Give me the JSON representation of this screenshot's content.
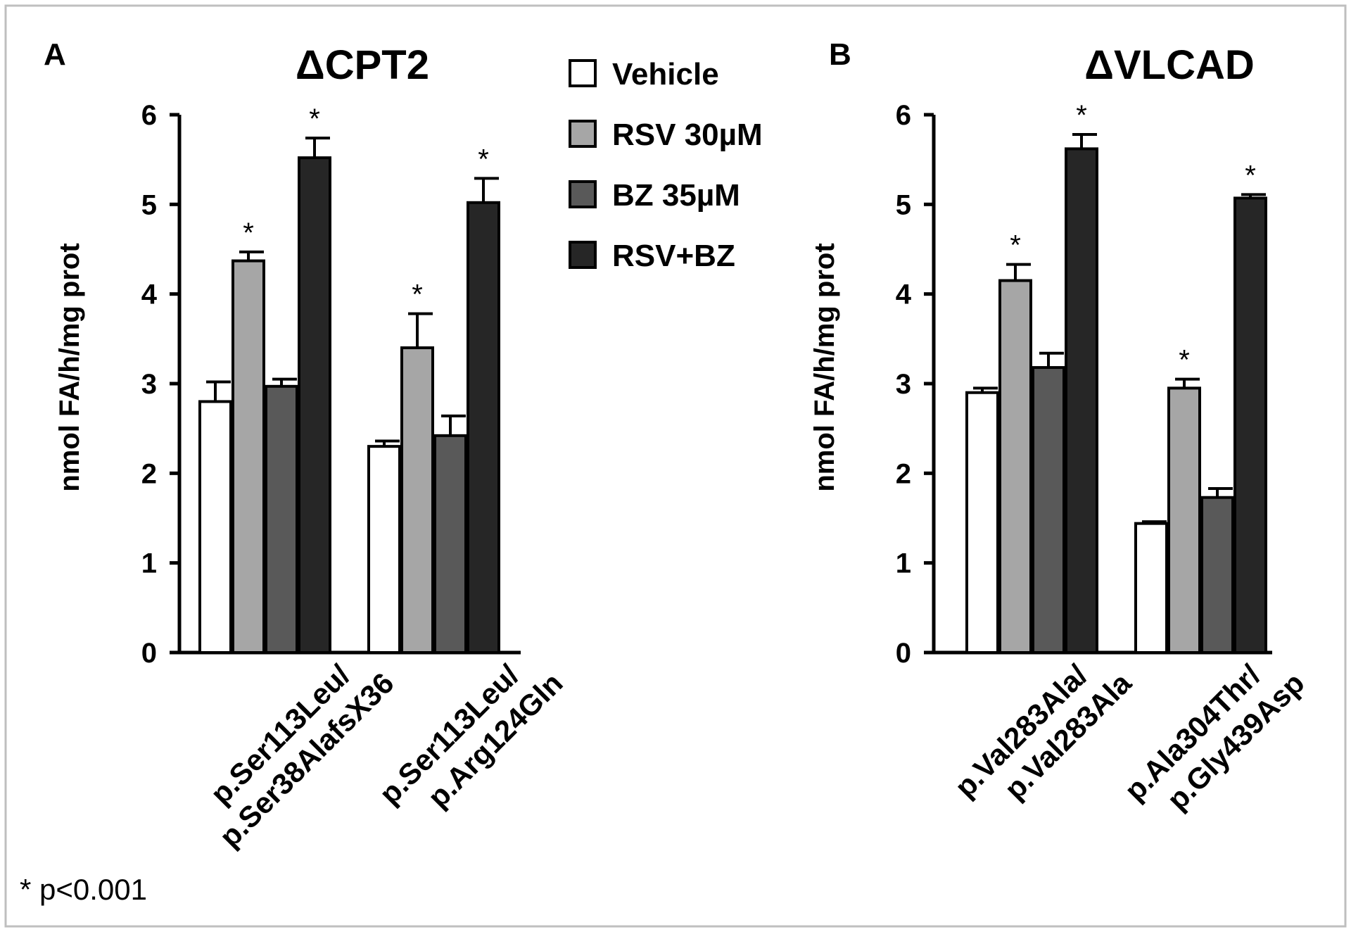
{
  "legend": [
    {
      "label": "Vehicle",
      "color": "#ffffff"
    },
    {
      "label": "RSV 30µM",
      "color": "#a6a6a6"
    },
    {
      "label": "BZ 35µM",
      "color": "#595959"
    },
    {
      "label": "RSV+BZ",
      "color": "#262626"
    }
  ],
  "footnote": "* p<0.001",
  "chart_data": [
    {
      "panel": "A",
      "type": "bar",
      "title": "ΔCPT2",
      "ylabel": "nmol FA/h/mg prot",
      "ylim": [
        0,
        6
      ],
      "yticks": [
        "0",
        "1",
        "2",
        "3",
        "4",
        "5",
        "6"
      ],
      "groups": [
        {
          "label_lines": [
            "p.Ser113Leu/",
            "p.Ser38AlafsX36"
          ]
        },
        {
          "label_lines": [
            "p.Ser113Leu/",
            "p.Arg124Gln"
          ]
        }
      ],
      "series": [
        {
          "name": "Vehicle",
          "values": [
            2.8,
            2.3
          ],
          "errors": [
            0.22,
            0.06
          ],
          "sig": [
            false,
            false
          ]
        },
        {
          "name": "RSV 30µM",
          "values": [
            4.37,
            3.4
          ],
          "errors": [
            0.1,
            0.38
          ],
          "sig": [
            true,
            true
          ]
        },
        {
          "name": "BZ 35µM",
          "values": [
            2.97,
            2.42
          ],
          "errors": [
            0.08,
            0.22
          ],
          "sig": [
            false,
            false
          ]
        },
        {
          "name": "RSV+BZ",
          "values": [
            5.52,
            5.02
          ],
          "errors": [
            0.22,
            0.27
          ],
          "sig": [
            true,
            true
          ]
        }
      ],
      "sig_marker": "*"
    },
    {
      "panel": "B",
      "type": "bar",
      "title": "ΔVLCAD",
      "ylabel": "nmol FA/h/mg prot",
      "ylim": [
        0,
        6
      ],
      "yticks": [
        "0",
        "1",
        "2",
        "3",
        "4",
        "5",
        "6"
      ],
      "groups": [
        {
          "label_lines": [
            "p.Val283Ala/",
            "p.Val283Ala"
          ]
        },
        {
          "label_lines": [
            "p.Ala304Thr/",
            "p.Gly439Asp"
          ]
        }
      ],
      "series": [
        {
          "name": "Vehicle",
          "values": [
            2.9,
            1.44
          ],
          "errors": [
            0.05,
            0.02
          ],
          "sig": [
            false,
            false
          ]
        },
        {
          "name": "RSV 30µM",
          "values": [
            4.15,
            2.95
          ],
          "errors": [
            0.18,
            0.1
          ],
          "sig": [
            true,
            true
          ]
        },
        {
          "name": "BZ 35µM",
          "values": [
            3.18,
            1.73
          ],
          "errors": [
            0.16,
            0.1
          ],
          "sig": [
            false,
            false
          ]
        },
        {
          "name": "RSV+BZ",
          "values": [
            5.62,
            5.07
          ],
          "errors": [
            0.16,
            0.04
          ],
          "sig": [
            true,
            true
          ]
        }
      ],
      "sig_marker": "*"
    }
  ]
}
